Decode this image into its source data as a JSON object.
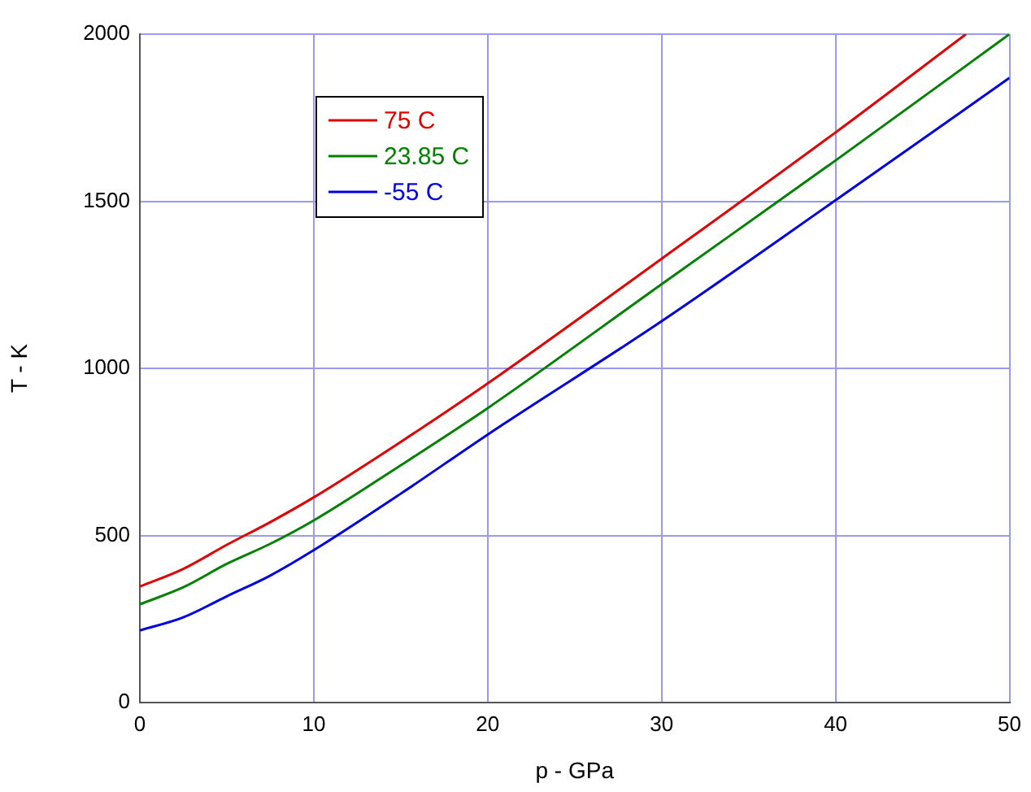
{
  "chart_data": {
    "type": "line",
    "xlabel": "p - GPa",
    "ylabel": "T - K",
    "xlim": [
      0,
      50
    ],
    "ylim": [
      0,
      2000
    ],
    "xticks": [
      0,
      10,
      20,
      30,
      40,
      50
    ],
    "yticks": [
      0,
      500,
      1000,
      1500,
      2000
    ],
    "grid": true,
    "legend": "top left",
    "marker": "none",
    "line_style": "solid",
    "series": [
      {
        "name": "75 C",
        "color": "#e00000",
        "x": [
          0,
          2.5,
          5,
          7.5,
          10,
          15,
          20,
          30,
          40,
          47.5
        ],
        "values": [
          347,
          400,
          472,
          540,
          614,
          780,
          955,
          1328,
          1706,
          2000
        ]
      },
      {
        "name": "23.85 C",
        "color": "#008000",
        "x": [
          0,
          2.5,
          5,
          7.5,
          10,
          15,
          20,
          30,
          40,
          50
        ],
        "values": [
          294,
          345,
          415,
          475,
          545,
          710,
          881,
          1252,
          1622,
          2000
        ]
      },
      {
        "name": "-55 C",
        "color": "#0000e0",
        "x": [
          0,
          2.5,
          5,
          7.5,
          10,
          15,
          20,
          30,
          40,
          50
        ],
        "values": [
          216,
          255,
          318,
          380,
          456,
          625,
          802,
          1141,
          1503,
          1869
        ]
      }
    ]
  }
}
